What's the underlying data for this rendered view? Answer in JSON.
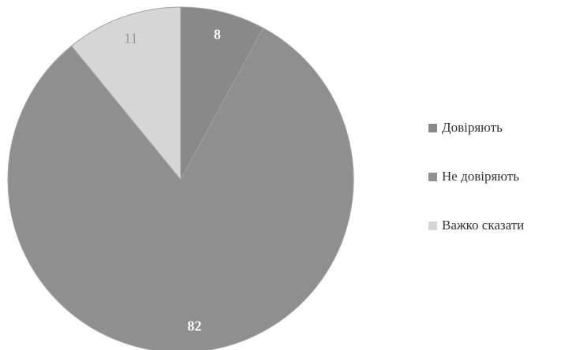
{
  "chart_data": {
    "type": "pie",
    "title": "",
    "categories": [
      "Довіряють",
      "Не довіряють",
      "Важко сказати"
    ],
    "values": [
      8,
      82,
      11
    ],
    "colors": [
      "#898989",
      "#8f8f8f",
      "#d6d6d6"
    ],
    "data_labels": [
      "8",
      "82",
      "11"
    ],
    "data_label_colors": [
      "#ffffff",
      "#ffffff",
      "#9a9a9a"
    ],
    "data_label_bold": [
      true,
      true,
      false
    ],
    "start_angle_deg": 0,
    "direction": "clockwise",
    "legend_position": "right",
    "slice_border": "#a0a0a0"
  }
}
